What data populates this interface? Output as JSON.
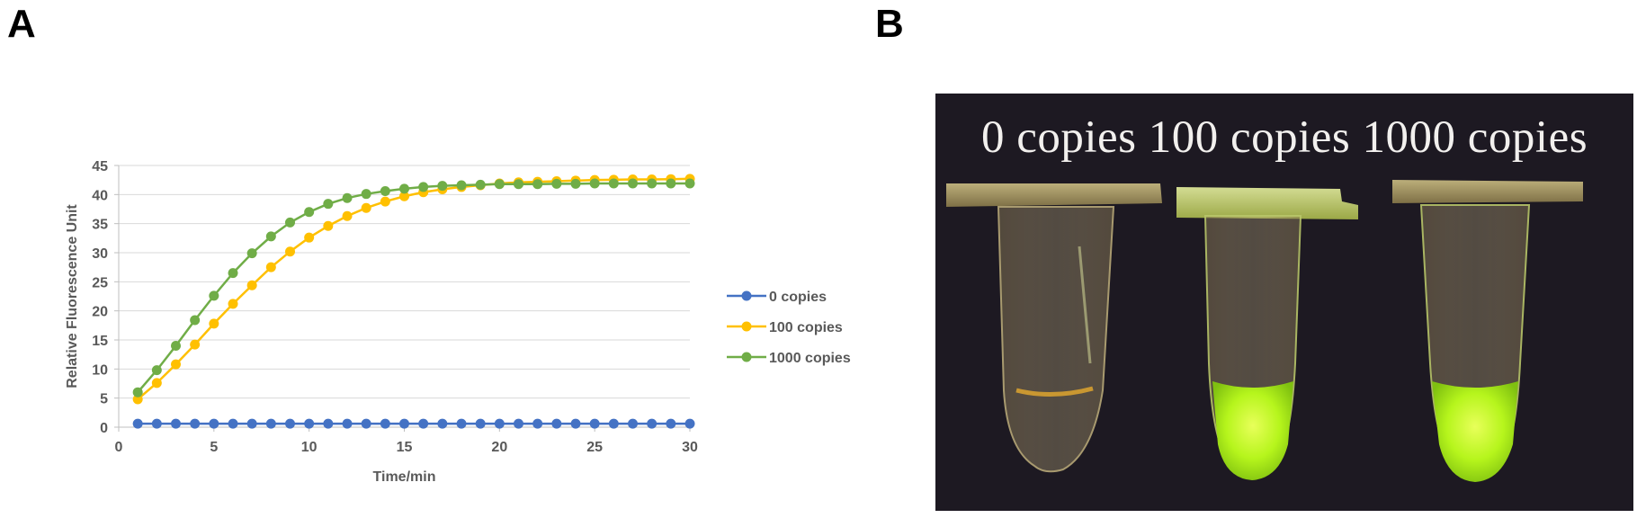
{
  "panels": {
    "a_label": "A",
    "b_label": "B"
  },
  "chart_data": {
    "type": "line",
    "title": "",
    "xlabel": "Time/min",
    "ylabel": "Relative Fluorescence Unit",
    "xlim": [
      0,
      30
    ],
    "ylim": [
      0,
      45
    ],
    "xticks": [
      0,
      5,
      10,
      15,
      20,
      25,
      30
    ],
    "yticks": [
      0,
      5,
      10,
      15,
      20,
      25,
      30,
      35,
      40,
      45
    ],
    "grid": "horizontal",
    "legend_position": "right",
    "x": [
      1,
      2,
      3,
      4,
      5,
      6,
      7,
      8,
      9,
      10,
      11,
      12,
      13,
      14,
      15,
      16,
      17,
      18,
      19,
      20,
      21,
      22,
      23,
      24,
      25,
      26,
      27,
      28,
      29,
      30
    ],
    "series": [
      {
        "name": "0 copies",
        "color": "#4472C4",
        "values": [
          0.6,
          0.6,
          0.6,
          0.6,
          0.6,
          0.6,
          0.6,
          0.6,
          0.6,
          0.6,
          0.6,
          0.6,
          0.6,
          0.6,
          0.6,
          0.6,
          0.6,
          0.6,
          0.6,
          0.6,
          0.6,
          0.6,
          0.6,
          0.6,
          0.6,
          0.6,
          0.6,
          0.6,
          0.6,
          0.6
        ]
      },
      {
        "name": "100 copies",
        "color": "#FFC000",
        "values": [
          4.8,
          7.6,
          10.8,
          14.2,
          17.8,
          21.2,
          24.4,
          27.5,
          30.2,
          32.6,
          34.6,
          36.3,
          37.7,
          38.8,
          39.7,
          40.4,
          40.9,
          41.3,
          41.6,
          41.9,
          42.1,
          42.2,
          42.3,
          42.4,
          42.5,
          42.55,
          42.6,
          42.6,
          42.65,
          42.7
        ]
      },
      {
        "name": "1000 copies",
        "color": "#70AD47",
        "values": [
          6.0,
          9.8,
          14.0,
          18.4,
          22.6,
          26.5,
          29.9,
          32.8,
          35.2,
          37.0,
          38.4,
          39.4,
          40.1,
          40.6,
          41.0,
          41.3,
          41.5,
          41.6,
          41.7,
          41.8,
          41.8,
          41.8,
          41.85,
          41.85,
          41.9,
          41.9,
          41.9,
          41.9,
          41.9,
          41.9
        ]
      }
    ]
  },
  "photo": {
    "caption": "0 copies 100 copies 1000 copies",
    "background": "#1d1922",
    "glow_color": "#c8ff1a"
  }
}
